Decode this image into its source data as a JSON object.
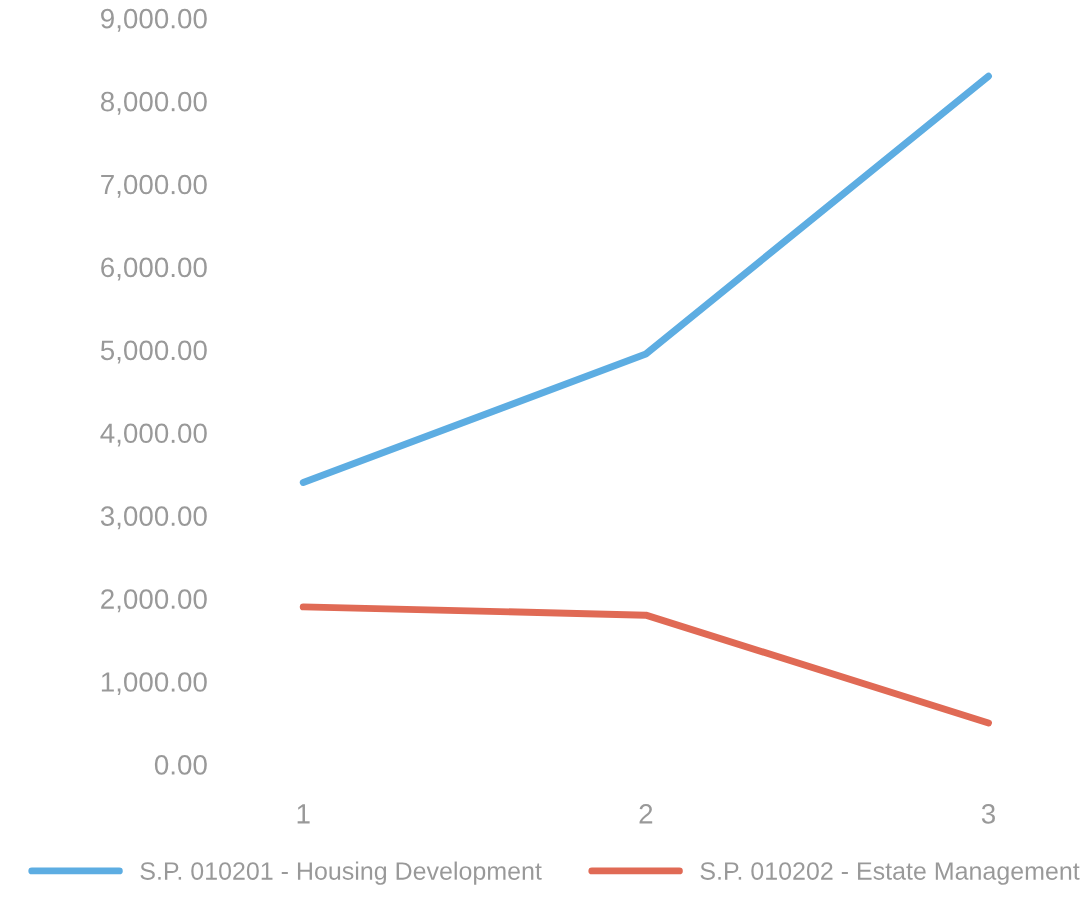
{
  "chart_data": {
    "type": "line",
    "categories": [
      "1",
      "2",
      "3"
    ],
    "series": [
      {
        "name": "S.P. 010201 - Housing Development",
        "color": "#5dade2",
        "values": [
          3400,
          4950,
          8300
        ]
      },
      {
        "name": "S.P. 010202 - Estate Management",
        "color": "#e06a55",
        "values": [
          1900,
          1800,
          500
        ]
      }
    ],
    "ylim": [
      0,
      9000
    ],
    "yticks": [
      {
        "value": 0,
        "label": "0.00"
      },
      {
        "value": 1000,
        "label": "1,000.00"
      },
      {
        "value": 2000,
        "label": "2,000.00"
      },
      {
        "value": 3000,
        "label": "3,000.00"
      },
      {
        "value": 4000,
        "label": "4,000.00"
      },
      {
        "value": 5000,
        "label": "5,000.00"
      },
      {
        "value": 6000,
        "label": "6,000.00"
      },
      {
        "value": 7000,
        "label": "7,000.00"
      },
      {
        "value": 8000,
        "label": "8,000.00"
      },
      {
        "value": 9000,
        "label": "9,000.00"
      }
    ],
    "grid": false,
    "legend": "bottom"
  }
}
